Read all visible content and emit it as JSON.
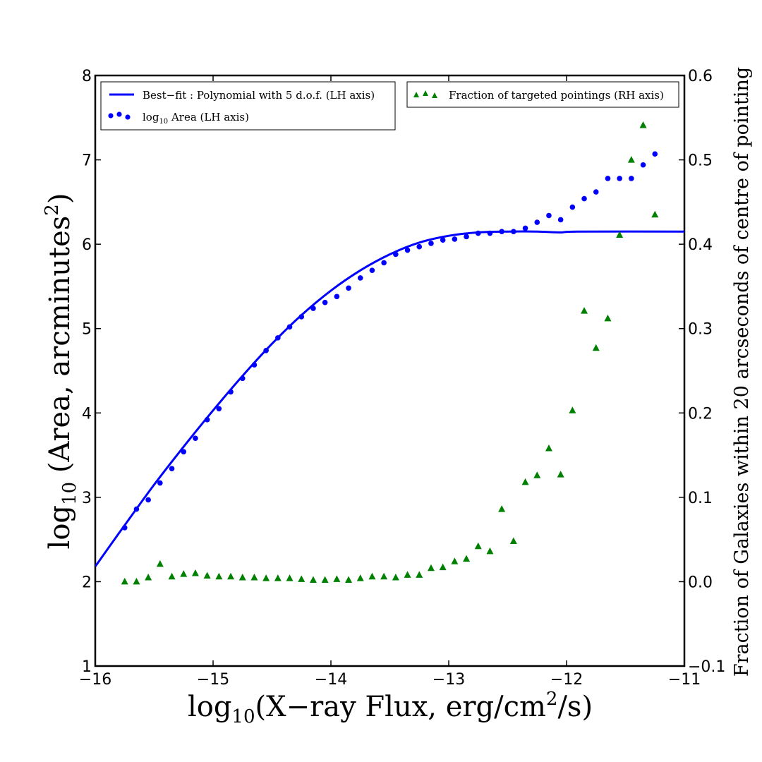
{
  "chart_data": {
    "type": "scatter",
    "xlabel": "log10(X−ray Flux, erg/cm2/s)",
    "xlabel_parts": {
      "pre": "log",
      "sub": "10",
      "mid": "(X−ray Flux, erg/cm",
      "sup": "2",
      "post": "/s)"
    },
    "ylabel_left": "log10 (Area, arcminutes2)",
    "ylabel_left_parts": {
      "pre": "log",
      "sub": "10",
      "mid": " (Area, arcminutes",
      "sup": "2",
      "post": ")"
    },
    "ylabel_right": "Fraction of Galaxies within 20 arcseconds of centre of pointing",
    "xlim": [
      -16,
      -11
    ],
    "ylim_left": [
      1,
      8
    ],
    "ylim_right": [
      -0.1,
      0.6
    ],
    "xticks": [
      -16,
      -15,
      -14,
      -13,
      -12,
      -11
    ],
    "xtick_labels": [
      "−16",
      "−15",
      "−14",
      "−13",
      "−12",
      "−11"
    ],
    "yticks_left": [
      1,
      2,
      3,
      4,
      5,
      6,
      7,
      8
    ],
    "ytick_labels_left": [
      "1",
      "2",
      "3",
      "4",
      "5",
      "6",
      "7",
      "8"
    ],
    "yticks_right": [
      -0.1,
      0.0,
      0.1,
      0.2,
      0.3,
      0.4,
      0.5,
      0.6
    ],
    "ytick_labels_right": [
      "−0.1",
      "0.0",
      "0.1",
      "0.2",
      "0.3",
      "0.4",
      "0.5",
      "0.6"
    ],
    "legend_left": {
      "fit_label": "Best−fit : Polynomial with 5 d.o.f. (LH axis)",
      "area_label": {
        "pre": "log",
        "sub": "10",
        "post": " Area  (LH axis)"
      }
    },
    "legend_right": {
      "fraction_label": "Fraction of targeted pointings (RH axis)"
    },
    "series": [
      {
        "name": "Best−fit : Polynomial with 5 d.o.f. (LH axis)",
        "kind": "line",
        "axis": "left",
        "color": "#0000ff",
        "x": [
          -16.0,
          -15.75,
          -15.5,
          -15.25,
          -15.0,
          -14.75,
          -14.5,
          -14.25,
          -14.0,
          -13.75,
          -13.5,
          -13.25,
          -13.0,
          -12.75,
          -12.5,
          -12.25,
          -12.05,
          -11.9,
          -11.0
        ],
        "y": [
          2.18,
          2.67,
          3.15,
          3.6,
          4.03,
          4.44,
          4.82,
          5.16,
          5.45,
          5.69,
          5.88,
          6.02,
          6.1,
          6.14,
          6.15,
          6.15,
          6.14,
          6.15,
          6.15
        ]
      },
      {
        "name": "log10 Area  (LH axis)",
        "kind": "points",
        "axis": "left",
        "color": "#0000ff",
        "x": [
          -15.75,
          -15.65,
          -15.55,
          -15.45,
          -15.35,
          -15.25,
          -15.15,
          -15.05,
          -14.95,
          -14.85,
          -14.75,
          -14.65,
          -14.55,
          -14.45,
          -14.35,
          -14.25,
          -14.15,
          -14.05,
          -13.95,
          -13.85,
          -13.75,
          -13.65,
          -13.55,
          -13.45,
          -13.35,
          -13.25,
          -13.15,
          -13.05,
          -12.95,
          -12.85,
          -12.75,
          -12.65,
          -12.55,
          -12.45,
          -12.35,
          -12.25,
          -12.15,
          -12.05,
          -11.95,
          -11.85,
          -11.75,
          -11.65,
          -11.55,
          -11.45,
          -11.35,
          -11.25
        ],
        "y": [
          2.64,
          2.86,
          2.97,
          3.17,
          3.34,
          3.54,
          3.7,
          3.92,
          4.05,
          4.25,
          4.41,
          4.57,
          4.74,
          4.89,
          5.02,
          5.14,
          5.24,
          5.31,
          5.38,
          5.48,
          5.6,
          5.69,
          5.78,
          5.88,
          5.93,
          5.97,
          6.01,
          6.05,
          6.06,
          6.09,
          6.13,
          6.13,
          6.15,
          6.15,
          6.19,
          6.26,
          6.34,
          6.29,
          6.44,
          6.54,
          6.62,
          6.78,
          6.78,
          6.78,
          6.94,
          7.07
        ]
      },
      {
        "name": "Fraction of targeted pointings (RH axis)",
        "kind": "triangles",
        "axis": "right",
        "color": "#008000",
        "x": [
          -15.75,
          -15.65,
          -15.55,
          -15.45,
          -15.35,
          -15.25,
          -15.15,
          -15.05,
          -14.95,
          -14.85,
          -14.75,
          -14.65,
          -14.55,
          -14.45,
          -14.35,
          -14.25,
          -14.15,
          -14.05,
          -13.95,
          -13.85,
          -13.75,
          -13.65,
          -13.55,
          -13.45,
          -13.35,
          -13.25,
          -13.15,
          -13.05,
          -12.95,
          -12.85,
          -12.75,
          -12.65,
          -12.55,
          -12.45,
          -12.35,
          -12.25,
          -12.15,
          -12.05,
          -11.95,
          -11.85,
          -11.75,
          -11.65,
          -11.55,
          -11.45,
          -11.35,
          -11.25
        ],
        "y": [
          0.0,
          0.0,
          0.005,
          0.021,
          0.006,
          0.009,
          0.01,
          0.007,
          0.006,
          0.006,
          0.005,
          0.005,
          0.004,
          0.004,
          0.004,
          0.003,
          0.002,
          0.002,
          0.003,
          0.002,
          0.004,
          0.006,
          0.006,
          0.005,
          0.008,
          0.008,
          0.016,
          0.017,
          0.024,
          0.027,
          0.042,
          0.036,
          0.086,
          0.048,
          0.118,
          0.126,
          0.158,
          0.127,
          0.203,
          0.321,
          0.277,
          0.312,
          0.411,
          0.5,
          0.541,
          0.435
        ]
      }
    ]
  }
}
